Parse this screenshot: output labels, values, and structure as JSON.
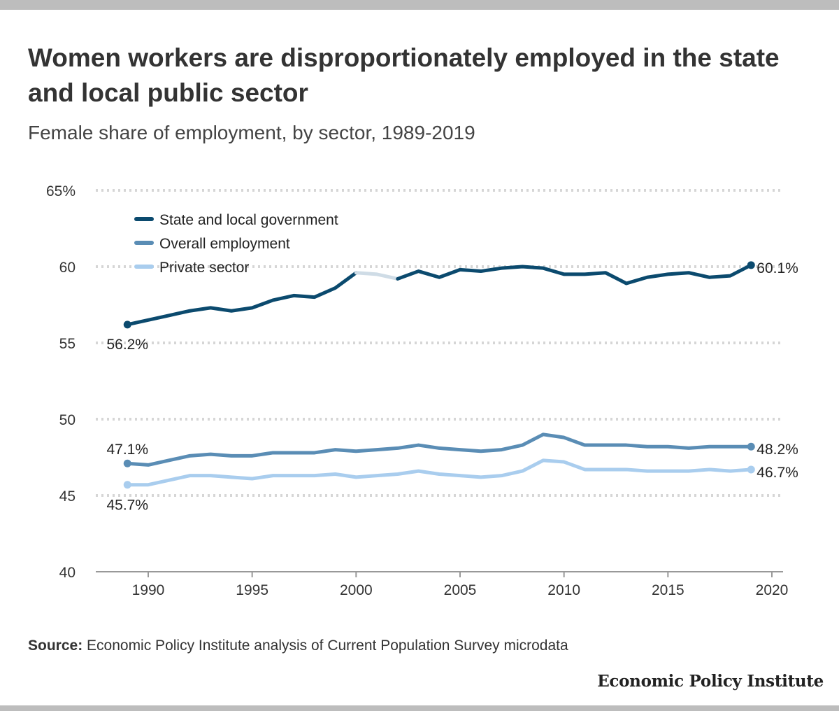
{
  "header": {
    "title": "Women workers are disproportionately employed in the state and local public sector",
    "subtitle": "Female share of employment, by sector, 1989-2019"
  },
  "footer": {
    "source_label": "Source:",
    "source_text": " Economic Policy Institute analysis of Current Population Survey microdata",
    "brand": "Economic Policy Institute"
  },
  "colors": {
    "state_local": "#0b4a6e",
    "overall": "#5a8db5",
    "private": "#a9cdee",
    "highlight_gap": "#cfdce6",
    "grid": "#d6d6d6",
    "axis": "#999999"
  },
  "chart_data": {
    "type": "line",
    "title": "",
    "xlabel": "",
    "ylabel": "",
    "xlim": [
      1988,
      2020
    ],
    "ylim": [
      40,
      65
    ],
    "x_ticks": [
      1990,
      1995,
      2000,
      2005,
      2010,
      2015,
      2020
    ],
    "x_tick_labels": [
      "1990",
      "1995",
      "2000",
      "2005",
      "2010",
      "2015",
      "2020"
    ],
    "y_ticks": [
      40,
      45,
      50,
      55,
      60,
      65
    ],
    "y_tick_labels": [
      "40",
      "45",
      "50",
      "55",
      "60",
      "65%"
    ],
    "grid": true,
    "legend_position": "top-left",
    "x": [
      1989,
      1990,
      1991,
      1992,
      1993,
      1994,
      1995,
      1996,
      1997,
      1998,
      1999,
      2000,
      2001,
      2002,
      2003,
      2004,
      2005,
      2006,
      2007,
      2008,
      2009,
      2010,
      2011,
      2012,
      2013,
      2014,
      2015,
      2016,
      2017,
      2018,
      2019
    ],
    "series": [
      {
        "name": "State and local government",
        "color_key": "state_local",
        "values": [
          56.2,
          56.5,
          56.8,
          57.1,
          57.3,
          57.1,
          57.3,
          57.8,
          58.1,
          58.0,
          58.6,
          59.6,
          59.5,
          59.2,
          59.7,
          59.3,
          59.8,
          59.7,
          59.9,
          60.0,
          59.9,
          59.5,
          59.5,
          59.6,
          58.9,
          59.3,
          59.5,
          59.6,
          59.3,
          59.4,
          60.1
        ],
        "light_segment": [
          2000,
          2002
        ],
        "start_label": "56.2%",
        "end_label": "60.1%"
      },
      {
        "name": "Overall employment",
        "color_key": "overall",
        "values": [
          47.1,
          47.0,
          47.3,
          47.6,
          47.7,
          47.6,
          47.6,
          47.8,
          47.8,
          47.8,
          48.0,
          47.9,
          48.0,
          48.1,
          48.3,
          48.1,
          48.0,
          47.9,
          48.0,
          48.3,
          49.0,
          48.8,
          48.3,
          48.3,
          48.3,
          48.2,
          48.2,
          48.1,
          48.2,
          48.2,
          48.2
        ],
        "start_label": "47.1%",
        "end_label": "48.2%"
      },
      {
        "name": "Private sector",
        "color_key": "private",
        "values": [
          45.7,
          45.7,
          46.0,
          46.3,
          46.3,
          46.2,
          46.1,
          46.3,
          46.3,
          46.3,
          46.4,
          46.2,
          46.3,
          46.4,
          46.6,
          46.4,
          46.3,
          46.2,
          46.3,
          46.6,
          47.3,
          47.2,
          46.7,
          46.7,
          46.7,
          46.6,
          46.6,
          46.6,
          46.7,
          46.6,
          46.7
        ],
        "start_label": "45.7%",
        "end_label": "46.7%"
      }
    ]
  }
}
